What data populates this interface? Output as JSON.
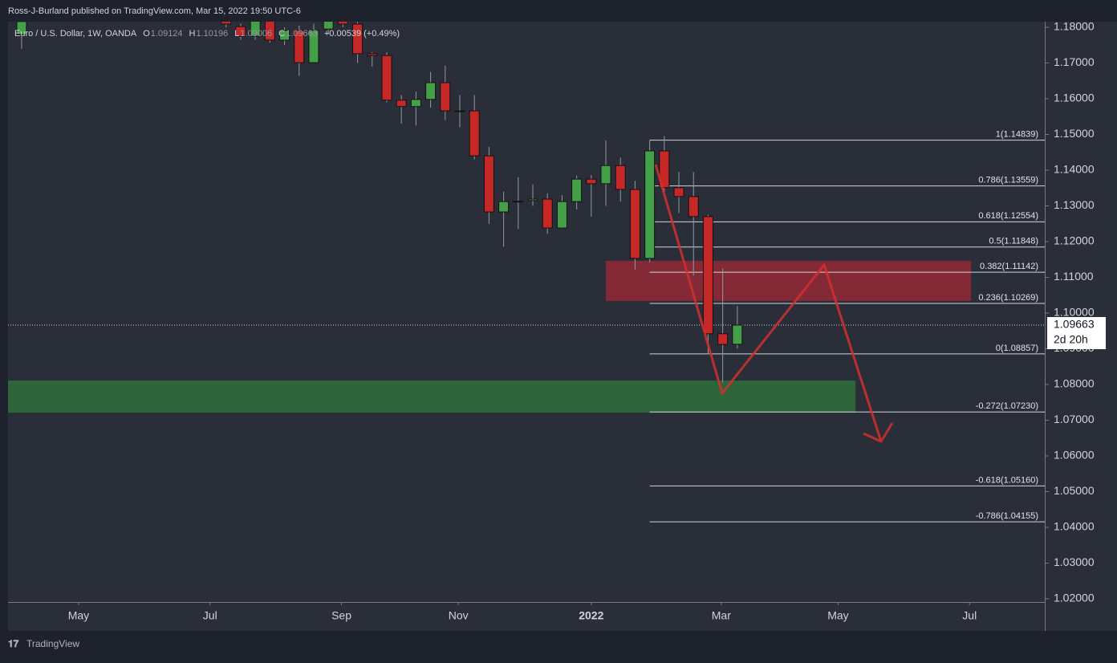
{
  "header": "Ross-J-Burland published on TradingView.com, Mar 15, 2022 19:50 UTC-6",
  "footer": "TradingView",
  "chart_data": {
    "type": "candlestick",
    "legend_text": [
      "Euro / U.S. Dollar, 1W, OANDA",
      "O",
      "1.09124",
      "H",
      "1.10196",
      "L",
      "1.09006",
      "C",
      "1.09663",
      "+0.00539 (+0.49%)"
    ],
    "x": [
      0,
      14,
      15,
      16,
      17,
      18,
      19,
      20,
      21,
      22,
      23,
      24,
      25,
      26,
      27,
      28,
      29,
      30,
      31,
      32,
      33,
      34,
      35,
      36,
      37,
      38,
      39,
      40,
      41,
      42,
      43,
      44,
      45,
      46,
      47,
      48,
      49
    ],
    "open": [
      1.178,
      1.183,
      1.1802,
      1.1775,
      1.183,
      1.1764,
      1.1791,
      1.1701,
      1.1795,
      1.184,
      1.1809,
      1.1726,
      1.1721,
      1.1596,
      1.1578,
      1.1598,
      1.1645,
      1.1566,
      1.1566,
      1.144,
      1.1283,
      1.1312,
      1.1315,
      1.1319,
      1.1238,
      1.1312,
      1.1375,
      1.1362,
      1.1413,
      1.1346,
      1.1153,
      1.1454,
      1.1351,
      1.1326,
      1.127,
      1.0942,
      1.09124
    ],
    "high": [
      1.183,
      1.185,
      1.181,
      1.185,
      1.185,
      1.18,
      1.1805,
      1.181,
      1.186,
      1.185,
      1.1815,
      1.173,
      1.173,
      1.161,
      1.162,
      1.1675,
      1.1693,
      1.161,
      1.161,
      1.1465,
      1.134,
      1.138,
      1.136,
      1.1335,
      1.133,
      1.1385,
      1.1386,
      1.1483,
      1.1435,
      1.137,
      1.1484,
      1.1495,
      1.1395,
      1.1395,
      1.1275,
      1.1125,
      1.10196
    ],
    "low": [
      1.174,
      1.18,
      1.1765,
      1.1765,
      1.1757,
      1.175,
      1.1664,
      1.17,
      1.178,
      1.18,
      1.17,
      1.169,
      1.159,
      1.153,
      1.1525,
      1.1575,
      1.154,
      1.152,
      1.143,
      1.125,
      1.1186,
      1.1235,
      1.13,
      1.1222,
      1.1236,
      1.129,
      1.127,
      1.13,
      1.1312,
      1.1122,
      1.1142,
      1.134,
      1.128,
      1.1105,
      1.0885,
      1.0806,
      1.09006
    ],
    "close": [
      1.1816,
      1.1809,
      1.1775,
      1.184,
      1.1764,
      1.1791,
      1.1701,
      1.1791,
      1.184,
      1.1809,
      1.1726,
      1.1721,
      1.1596,
      1.1578,
      1.1598,
      1.1645,
      1.1566,
      1.1564,
      1.144,
      1.1283,
      1.1312,
      1.1313,
      1.1319,
      1.1238,
      1.1312,
      1.1375,
      1.1362,
      1.1413,
      1.1346,
      1.1153,
      1.1454,
      1.1351,
      1.1326,
      1.127,
      1.0942,
      1.0912,
      1.09663
    ],
    "up_color": "#43a047",
    "down_color": "#c62828",
    "ylim": [
      1.0191,
      1.18157
    ],
    "yticks": [
      {
        "value": 1.18,
        "label": "1.18000"
      },
      {
        "value": 1.17,
        "label": "1.17000"
      },
      {
        "value": 1.16,
        "label": "1.16000"
      },
      {
        "value": 1.15,
        "label": "1.15000"
      },
      {
        "value": 1.14,
        "label": "1.14000"
      },
      {
        "value": 1.13,
        "label": "1.13000"
      },
      {
        "value": 1.12,
        "label": "1.12000"
      },
      {
        "value": 1.11,
        "label": "1.11000"
      },
      {
        "value": 1.1,
        "label": "1.10000"
      },
      {
        "value": 1.09,
        "label": "1.09000"
      },
      {
        "value": 1.08,
        "label": "1.08000"
      },
      {
        "value": 1.07,
        "label": "1.07000"
      },
      {
        "value": 1.06,
        "label": "1.06000"
      },
      {
        "value": 1.05,
        "label": "1.05000"
      },
      {
        "value": 1.04,
        "label": "1.04000"
      },
      {
        "value": 1.03,
        "label": "1.03000"
      },
      {
        "value": 1.02,
        "label": "1.02000"
      }
    ],
    "xlim": [
      -0.93,
      70.05
    ],
    "xticks": [
      {
        "value": 3.9,
        "label": "May"
      },
      {
        "value": 12.9,
        "label": "Jul"
      },
      {
        "value": 21.9,
        "label": "Sep"
      },
      {
        "value": 29.9,
        "label": "Nov"
      },
      {
        "value": 39,
        "label": "2022"
      },
      {
        "value": 47.9,
        "label": "Mar"
      },
      {
        "value": 55.9,
        "label": "May"
      },
      {
        "value": 64.9,
        "label": "Jul"
      }
    ],
    "fib_levels": [
      {
        "value": 1.14839,
        "label": "1(1.14839)"
      },
      {
        "value": 1.13559,
        "label": "0.786(1.13559)"
      },
      {
        "value": 1.12554,
        "label": "0.618(1.12554)"
      },
      {
        "value": 1.11848,
        "label": "0.5(1.11848)"
      },
      {
        "value": 1.11142,
        "label": "0.382(1.11142)"
      },
      {
        "value": 1.10269,
        "label": "0.236(1.10269)"
      },
      {
        "value": 1.08857,
        "label": "0(1.08857)"
      },
      {
        "value": 1.0723,
        "label": "-0.272(1.07230)"
      },
      {
        "value": 1.0516,
        "label": "-0.618(1.05160)"
      },
      {
        "value": 1.04155,
        "label": "-0.786(1.04155)"
      }
    ],
    "zones": [
      {
        "top": 1.1146,
        "bottom": 1.1034,
        "color": "#8e2a36"
      },
      {
        "top": 1.0811,
        "bottom": 1.0721,
        "color": "#2f6b3b"
      }
    ],
    "last_price": 1.09663,
    "countdown": "2d 20h"
  }
}
